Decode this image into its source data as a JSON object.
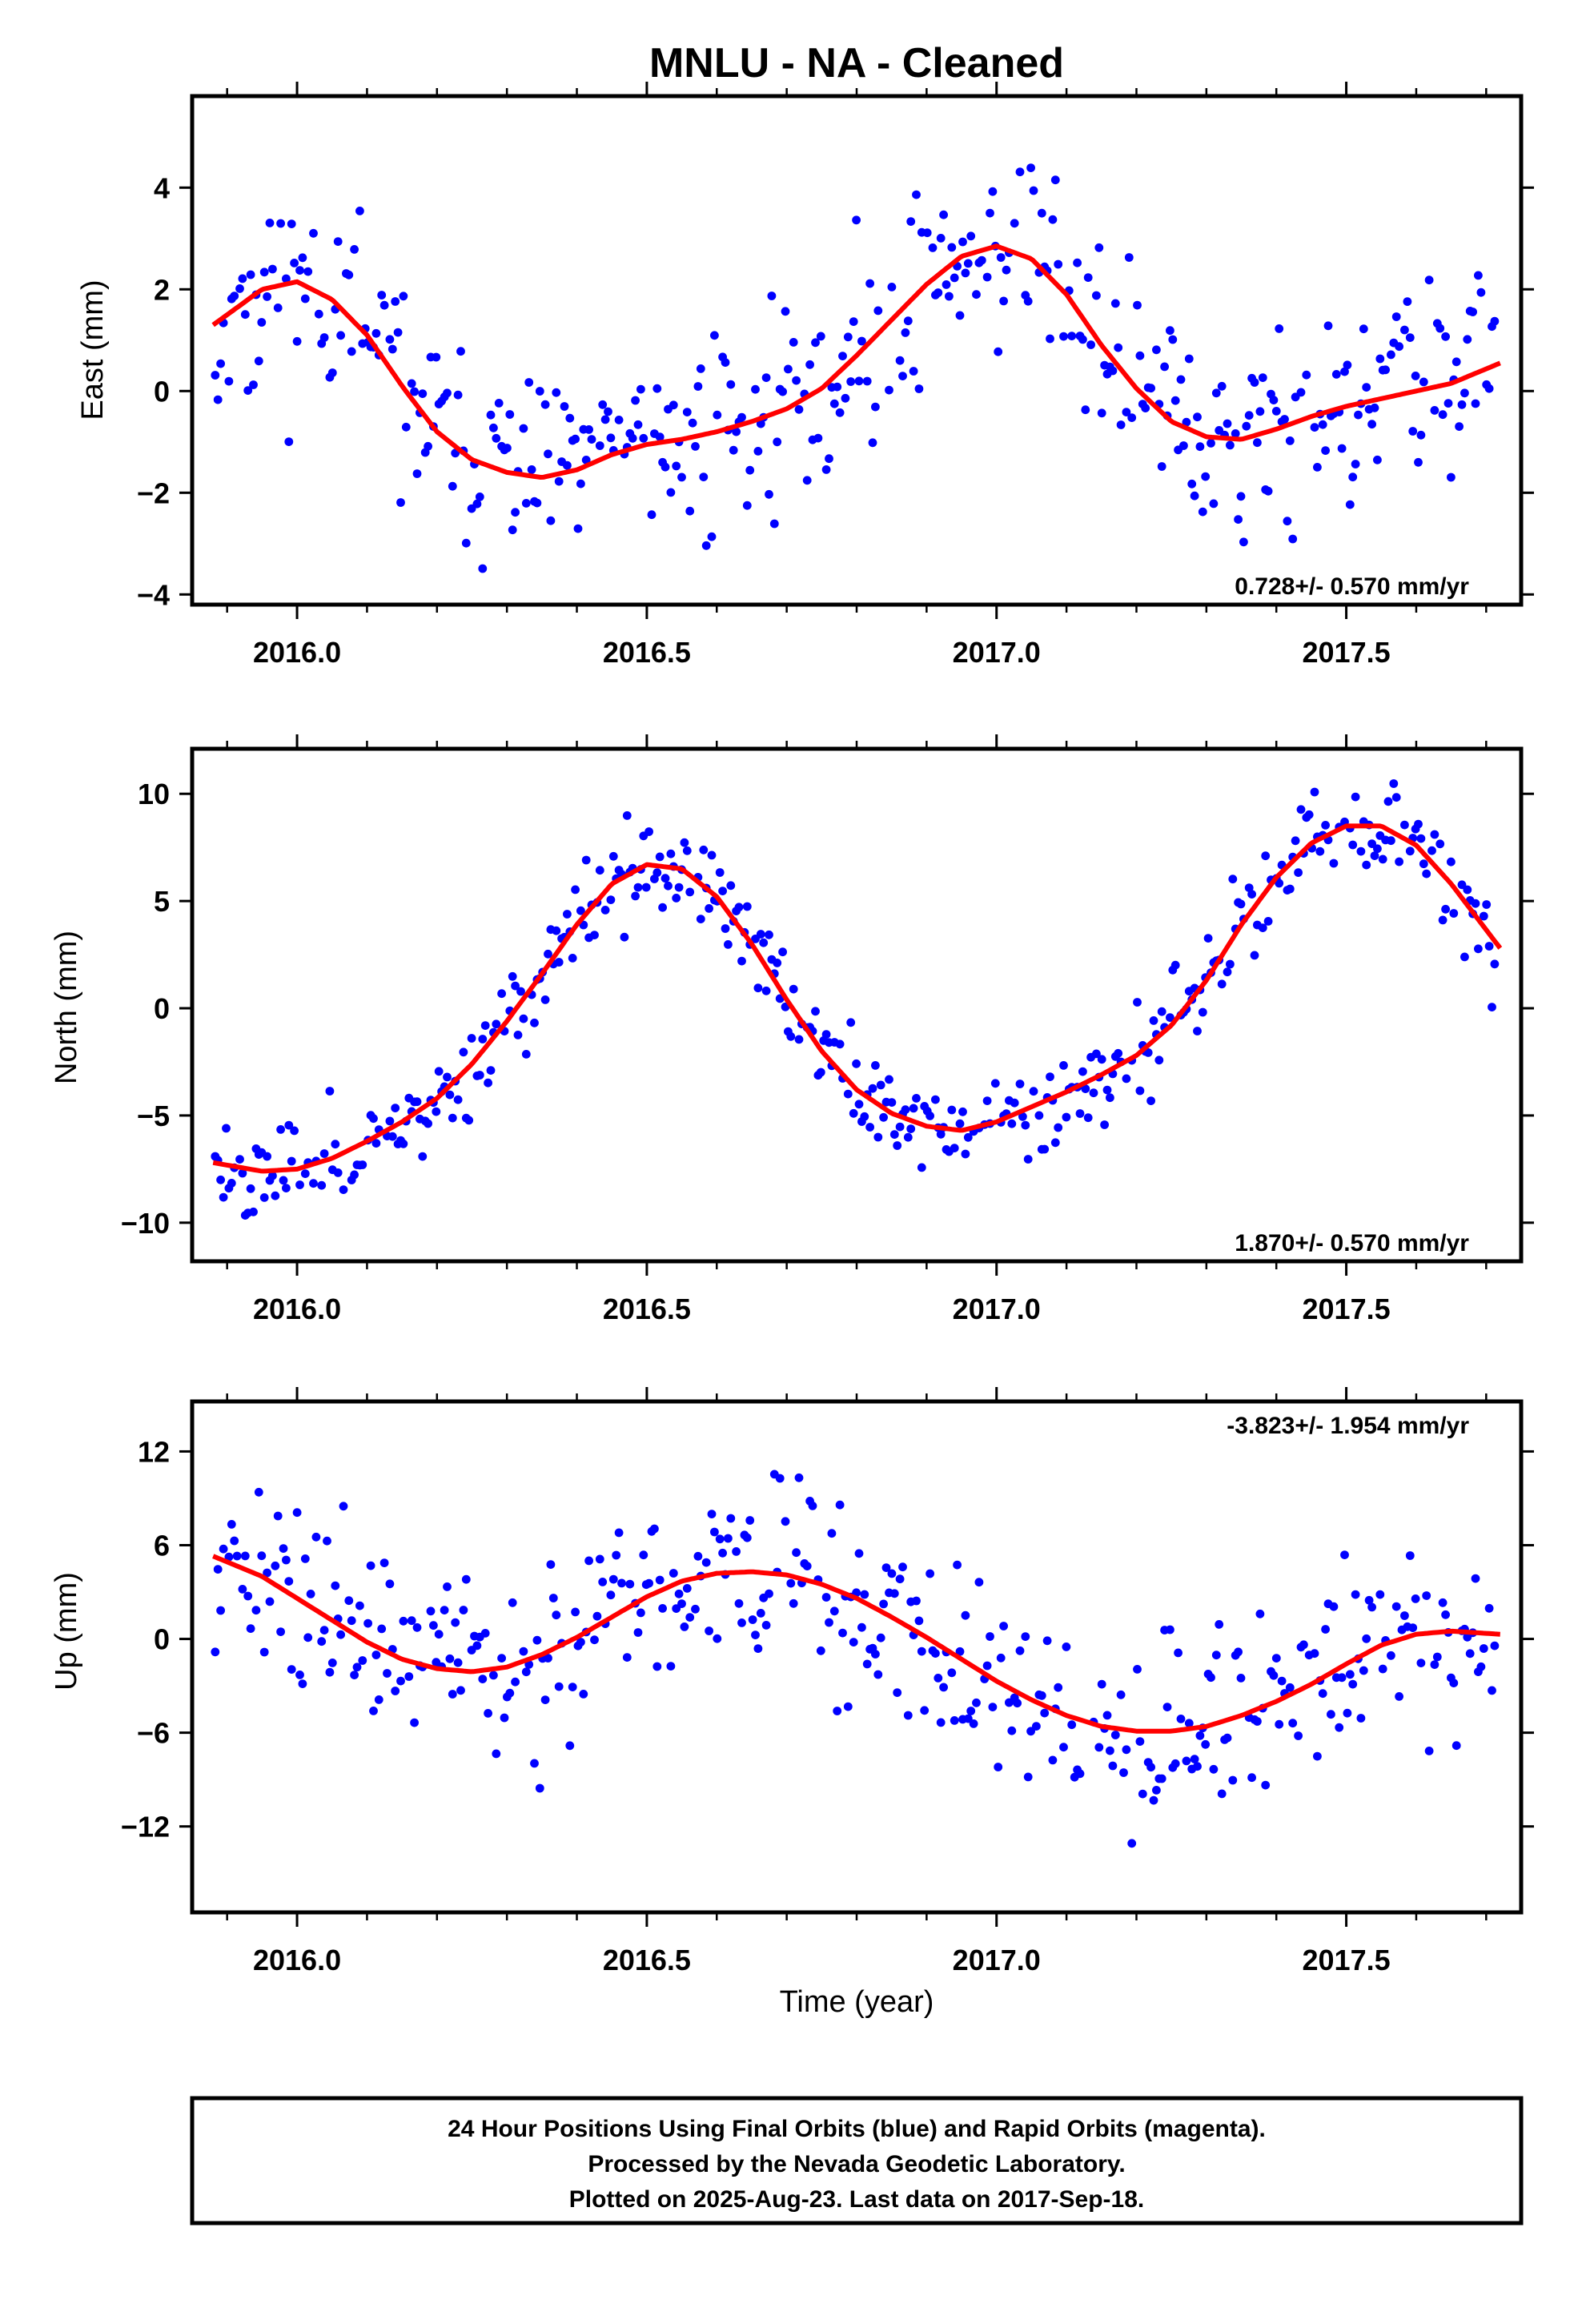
{
  "chart_data": {
    "title": "MNLU  - NA - Cleaned",
    "xlabel": "Time (year)",
    "type": "scatter",
    "xlim": [
      2015.85,
      2017.75
    ],
    "xticks": [
      "2016.0",
      "2016.5",
      "2017.0",
      "2017.5"
    ],
    "point_color": "#0000ff",
    "fit_color": "#ff0000",
    "panels": [
      {
        "name": "east",
        "ylabel": "East (mm)",
        "ylim": [
          -4.2,
          5.8
        ],
        "yticks": [
          "4",
          "2",
          "0",
          "−2",
          "−4"
        ],
        "rate": "0.728+/- 0.570 mm/yr",
        "rate_position": "bottom-right",
        "fit": [
          [
            2015.88,
            1.3
          ],
          [
            2015.95,
            2.0
          ],
          [
            2016.0,
            2.15
          ],
          [
            2016.05,
            1.8
          ],
          [
            2016.1,
            1.1
          ],
          [
            2016.15,
            0.1
          ],
          [
            2016.2,
            -0.8
          ],
          [
            2016.25,
            -1.35
          ],
          [
            2016.3,
            -1.6
          ],
          [
            2016.35,
            -1.7
          ],
          [
            2016.4,
            -1.55
          ],
          [
            2016.45,
            -1.25
          ],
          [
            2016.5,
            -1.05
          ],
          [
            2016.55,
            -0.95
          ],
          [
            2016.6,
            -0.8
          ],
          [
            2016.65,
            -0.6
          ],
          [
            2016.7,
            -0.35
          ],
          [
            2016.75,
            0.05
          ],
          [
            2016.8,
            0.7
          ],
          [
            2016.85,
            1.4
          ],
          [
            2016.9,
            2.1
          ],
          [
            2016.95,
            2.65
          ],
          [
            2017.0,
            2.85
          ],
          [
            2017.05,
            2.6
          ],
          [
            2017.1,
            1.9
          ],
          [
            2017.15,
            0.9
          ],
          [
            2017.2,
            0.05
          ],
          [
            2017.25,
            -0.6
          ],
          [
            2017.3,
            -0.9
          ],
          [
            2017.35,
            -0.95
          ],
          [
            2017.4,
            -0.75
          ],
          [
            2017.45,
            -0.5
          ],
          [
            2017.5,
            -0.3
          ],
          [
            2017.55,
            -0.15
          ],
          [
            2017.6,
            0.0
          ],
          [
            2017.65,
            0.15
          ],
          [
            2017.72,
            0.55
          ]
        ],
        "amp": 1.4,
        "seed": 11
      },
      {
        "name": "north",
        "ylabel": "North (mm)",
        "ylim": [
          -11.8,
          12.1
        ],
        "yticks": [
          "10",
          "5",
          "0",
          "−5",
          "−10"
        ],
        "rate": "1.870+/- 0.570 mm/yr",
        "rate_position": "bottom-right",
        "fit": [
          [
            2015.88,
            -7.2
          ],
          [
            2015.95,
            -7.6
          ],
          [
            2016.0,
            -7.5
          ],
          [
            2016.05,
            -7.0
          ],
          [
            2016.1,
            -6.2
          ],
          [
            2016.15,
            -5.3
          ],
          [
            2016.2,
            -4.2
          ],
          [
            2016.25,
            -2.6
          ],
          [
            2016.3,
            -0.6
          ],
          [
            2016.35,
            1.6
          ],
          [
            2016.4,
            3.9
          ],
          [
            2016.45,
            5.8
          ],
          [
            2016.5,
            6.7
          ],
          [
            2016.55,
            6.5
          ],
          [
            2016.6,
            5.2
          ],
          [
            2016.65,
            3.0
          ],
          [
            2016.7,
            0.4
          ],
          [
            2016.75,
            -2.0
          ],
          [
            2016.8,
            -3.8
          ],
          [
            2016.85,
            -4.9
          ],
          [
            2016.9,
            -5.5
          ],
          [
            2016.95,
            -5.7
          ],
          [
            2017.0,
            -5.3
          ],
          [
            2017.05,
            -4.6
          ],
          [
            2017.1,
            -3.9
          ],
          [
            2017.15,
            -3.1
          ],
          [
            2017.2,
            -2.2
          ],
          [
            2017.25,
            -0.8
          ],
          [
            2017.3,
            1.3
          ],
          [
            2017.35,
            3.9
          ],
          [
            2017.4,
            6.1
          ],
          [
            2017.45,
            7.7
          ],
          [
            2017.5,
            8.5
          ],
          [
            2017.55,
            8.5
          ],
          [
            2017.6,
            7.6
          ],
          [
            2017.65,
            5.8
          ],
          [
            2017.72,
            2.8
          ]
        ],
        "amp": 1.5,
        "seed": 23
      },
      {
        "name": "up",
        "ylabel": "Up (mm)",
        "ylim": [
          -17.5,
          15.2
        ],
        "yticks": [
          "12",
          "6",
          "0",
          "−6",
          "−12"
        ],
        "rate": "-3.823+/- 1.954 mm/yr",
        "rate_position": "top-right",
        "fit": [
          [
            2015.88,
            5.3
          ],
          [
            2015.95,
            4.0
          ],
          [
            2016.0,
            2.6
          ],
          [
            2016.05,
            1.2
          ],
          [
            2016.1,
            -0.2
          ],
          [
            2016.15,
            -1.3
          ],
          [
            2016.2,
            -1.9
          ],
          [
            2016.25,
            -2.1
          ],
          [
            2016.3,
            -1.8
          ],
          [
            2016.35,
            -1.0
          ],
          [
            2016.4,
            0.1
          ],
          [
            2016.45,
            1.4
          ],
          [
            2016.5,
            2.7
          ],
          [
            2016.55,
            3.7
          ],
          [
            2016.6,
            4.2
          ],
          [
            2016.65,
            4.3
          ],
          [
            2016.7,
            4.1
          ],
          [
            2016.75,
            3.5
          ],
          [
            2016.8,
            2.6
          ],
          [
            2016.85,
            1.4
          ],
          [
            2016.9,
            0.1
          ],
          [
            2016.95,
            -1.3
          ],
          [
            2017.0,
            -2.7
          ],
          [
            2017.05,
            -3.9
          ],
          [
            2017.1,
            -4.9
          ],
          [
            2017.15,
            -5.6
          ],
          [
            2017.2,
            -5.9
          ],
          [
            2017.25,
            -5.9
          ],
          [
            2017.3,
            -5.6
          ],
          [
            2017.35,
            -4.9
          ],
          [
            2017.4,
            -4.0
          ],
          [
            2017.45,
            -2.9
          ],
          [
            2017.5,
            -1.6
          ],
          [
            2017.55,
            -0.4
          ],
          [
            2017.6,
            0.3
          ],
          [
            2017.65,
            0.5
          ],
          [
            2017.72,
            0.3
          ]
        ],
        "amp": 4.3,
        "seed": 37
      }
    ]
  },
  "footer": {
    "line1": "24 Hour Positions Using Final Orbits (blue) and Rapid Orbits (magenta).",
    "line2": "Processed by the Nevada Geodetic Laboratory.",
    "line3": "Plotted on 2025-Aug-23. Last data on 2017-Sep-18."
  }
}
